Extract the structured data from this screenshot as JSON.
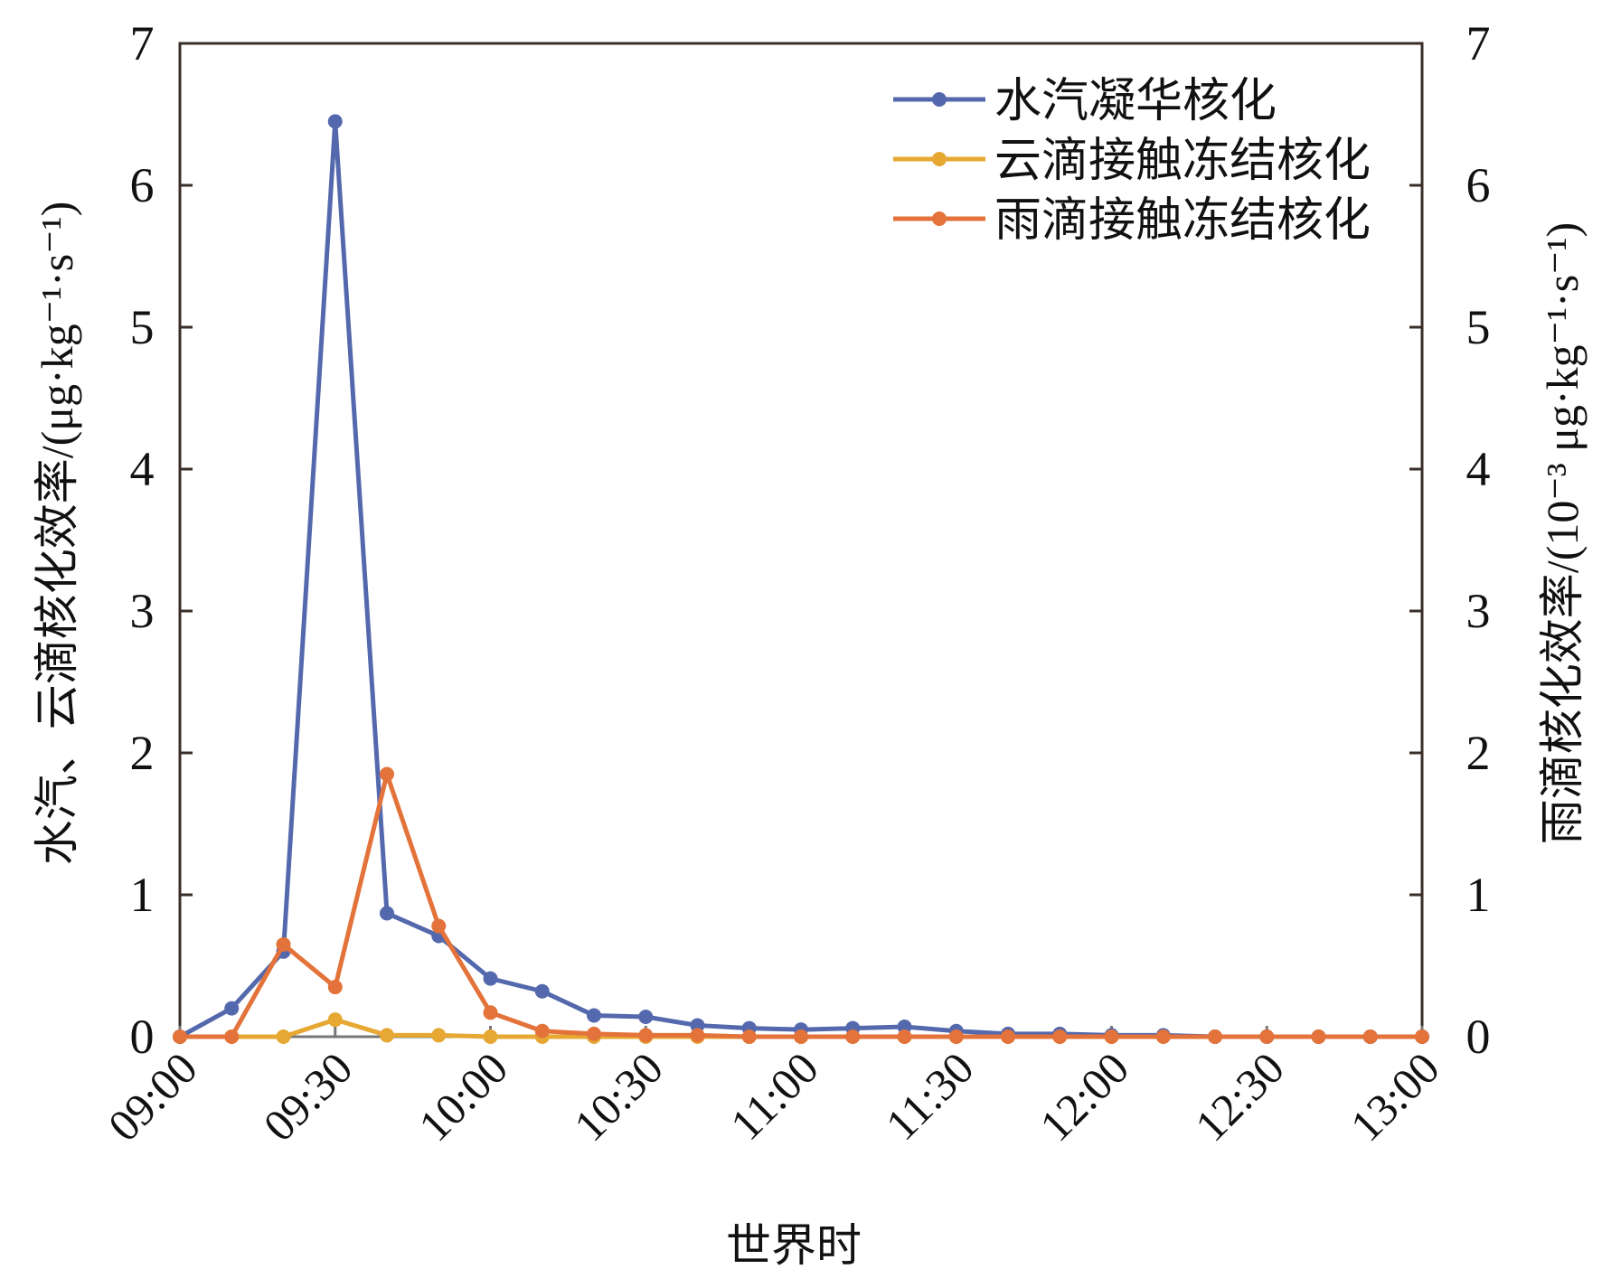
{
  "chart_data": {
    "type": "line",
    "xlabel": "世界时",
    "ylabel_left": "水汽、云滴核化效率/(μg·kg⁻¹·s⁻¹)",
    "ylabel_right": "雨滴核化效率/(10⁻³ μg·kg⁻¹·s⁻¹)",
    "x": [
      "09:00",
      "09:10",
      "09:20",
      "09:30",
      "09:40",
      "09:50",
      "10:00",
      "10:10",
      "10:20",
      "10:30",
      "10:40",
      "10:50",
      "11:00",
      "11:10",
      "11:20",
      "11:30",
      "11:40",
      "11:50",
      "12:00",
      "12:10",
      "12:20",
      "12:30",
      "12:40",
      "12:50",
      "13:00"
    ],
    "x_tick_labels": [
      "09:00",
      "09:30",
      "10:00",
      "10:30",
      "11:00",
      "11:30",
      "12:00",
      "12:30",
      "13:00"
    ],
    "ylim_left": [
      0,
      7
    ],
    "ylim_right": [
      0,
      7
    ],
    "y_ticks": [
      "0",
      "1",
      "2",
      "3",
      "4",
      "5",
      "6",
      "7"
    ],
    "grid": false,
    "legend_position": "top-right",
    "series": [
      {
        "name": "水汽凝华核化",
        "axis": "left",
        "color": "#5468ad",
        "values": [
          0,
          0.2,
          0.6,
          6.45,
          0.87,
          0.71,
          0.41,
          0.32,
          0.15,
          0.14,
          0.08,
          0.06,
          0.05,
          0.06,
          0.07,
          0.04,
          0.02,
          0.02,
          0.01,
          0.01,
          0,
          0,
          0,
          0,
          0
        ]
      },
      {
        "name": "云滴接触冻结核化",
        "axis": "left",
        "color": "#e6a832",
        "values": [
          0,
          0,
          0,
          0.12,
          0.01,
          0.01,
          0,
          0,
          0,
          0,
          0,
          0,
          0,
          0,
          0,
          0,
          0,
          0,
          0,
          0,
          0,
          0,
          0,
          0,
          0
        ]
      },
      {
        "name": "雨滴接触冻结核化",
        "axis": "right",
        "color": "#e3733a",
        "values": [
          0,
          0,
          0.65,
          0.35,
          1.85,
          0.78,
          0.17,
          0.04,
          0.02,
          0.01,
          0.01,
          0,
          0,
          0,
          0,
          0,
          0,
          0,
          0,
          0,
          0,
          0,
          0,
          0,
          0
        ]
      }
    ]
  }
}
